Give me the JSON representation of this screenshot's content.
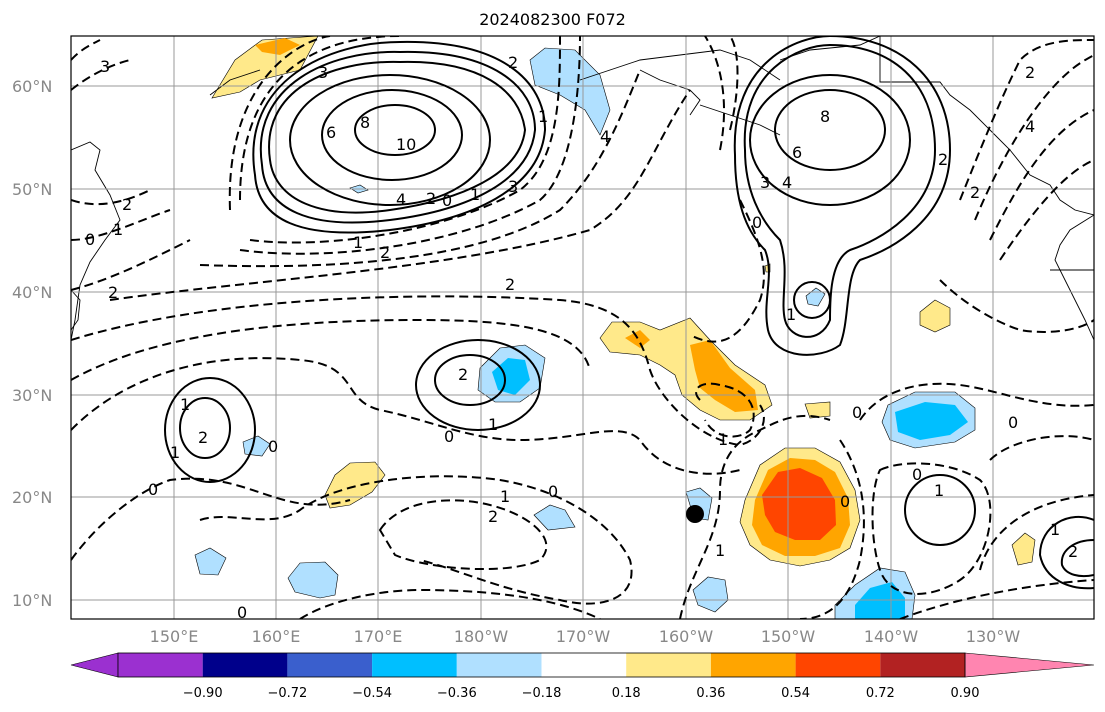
{
  "title": "2024082300 F072",
  "lat_labels": [
    "60°N",
    "50°N",
    "40°N",
    "30°N",
    "20°N",
    "10°N"
  ],
  "lon_labels": [
    "150°E",
    "160°E",
    "170°E",
    "180°W",
    "170°W",
    "160°W",
    "150°W",
    "140°W",
    "130°W"
  ],
  "colorbar": {
    "ticks": [
      "−0.90",
      "−0.72",
      "−0.54",
      "−0.36",
      "−0.18",
      "0.18",
      "0.36",
      "0.54",
      "0.72",
      "0.90"
    ],
    "colors": [
      "#9b30d0",
      "#00008b",
      "#3a5fcd",
      "#00bfff",
      "#b0e0ff",
      "#ffffff",
      "#ffe98a",
      "#ffa500",
      "#ff4500",
      "#b22222",
      "#ff85b0"
    ]
  },
  "contour_labels": [
    {
      "t": "3"
    },
    {
      "t": "3"
    },
    {
      "t": "6"
    },
    {
      "t": "8"
    },
    {
      "t": "10"
    },
    {
      "t": "4"
    },
    {
      "t": "2"
    },
    {
      "t": "0"
    },
    {
      "t": "1"
    },
    {
      "t": "3"
    },
    {
      "t": "4"
    },
    {
      "t": "2"
    },
    {
      "t": "1"
    },
    {
      "t": "2"
    },
    {
      "t": "1"
    },
    {
      "t": "2"
    },
    {
      "t": "2"
    },
    {
      "t": "8"
    },
    {
      "t": "6"
    },
    {
      "t": "4"
    },
    {
      "t": "3"
    },
    {
      "t": "0"
    },
    {
      "t": "1"
    },
    {
      "t": "2"
    },
    {
      "t": "2"
    },
    {
      "t": "4"
    },
    {
      "t": "2"
    },
    {
      "t": "2"
    },
    {
      "t": "1"
    },
    {
      "t": "0"
    },
    {
      "t": "2"
    },
    {
      "t": "0"
    },
    {
      "t": "1"
    },
    {
      "t": "0"
    },
    {
      "t": "1"
    },
    {
      "t": "1"
    },
    {
      "t": "2"
    },
    {
      "t": "0"
    },
    {
      "t": "1"
    },
    {
      "t": "0"
    },
    {
      "t": "2"
    },
    {
      "t": "0"
    },
    {
      "t": "1"
    },
    {
      "t": "0"
    },
    {
      "t": "0"
    },
    {
      "t": "1"
    },
    {
      "t": "0"
    },
    {
      "t": "1"
    },
    {
      "t": "2"
    },
    {
      "t": "1"
    },
    {
      "t": "0"
    }
  ]
}
